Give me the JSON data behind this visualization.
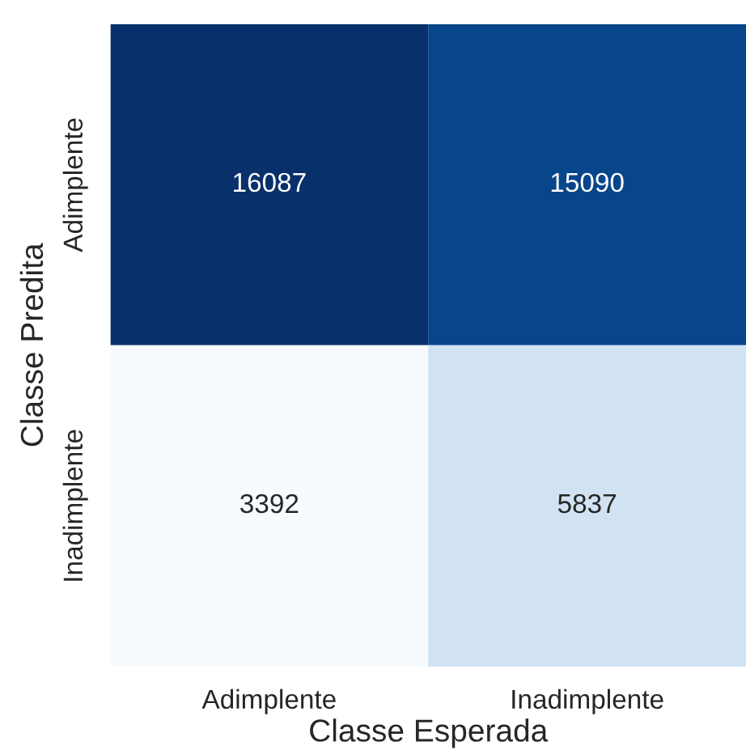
{
  "chart_data": {
    "type": "heatmap",
    "xlabel": "Classe Esperada",
    "ylabel": "Classe Predita",
    "categories": [
      "Adimplente",
      "Inadimplente"
    ],
    "y_categories": [
      "Adimplente",
      "Inadimplente"
    ],
    "cells": [
      [
        16087,
        15090
      ],
      [
        3392,
        5837
      ]
    ],
    "data_labels": true,
    "grid": false
  }
}
